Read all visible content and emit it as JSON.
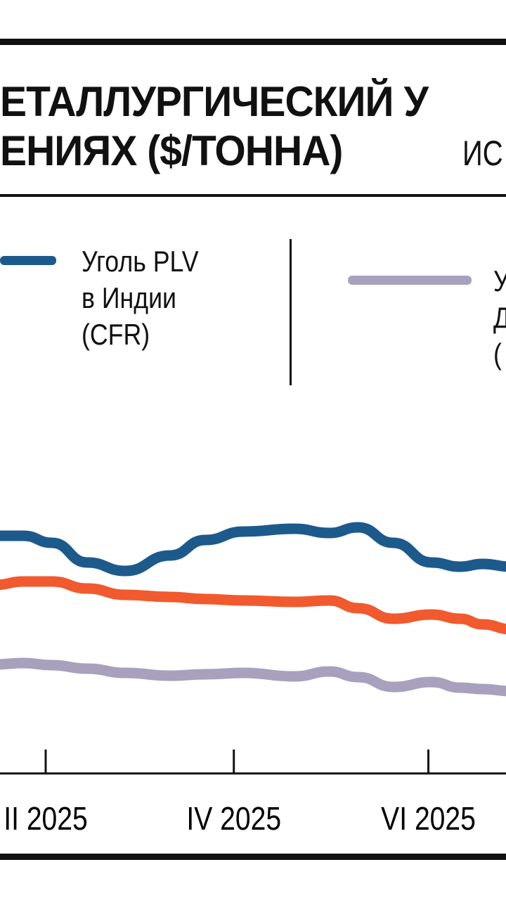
{
  "chart_data": {
    "type": "line",
    "title_lines": [
      "ЕТАЛЛУРГИЧЕСКИЙ У",
      "ЕНИЯХ ($/ТОННА)"
    ],
    "source_fragment": "ИС",
    "xlabel": "",
    "ylabel": "",
    "x_ticks": [
      "II 2025",
      "IV 2025",
      "VI 2025"
    ],
    "x": [
      "2025-01-16",
      "2025-01-25",
      "2025-02-03",
      "2025-02-14",
      "2025-02-26",
      "2025-03-12",
      "2025-03-23",
      "2025-04-04",
      "2025-04-20",
      "2025-05-01",
      "2025-05-10",
      "2025-05-21",
      "2025-06-02",
      "2025-06-11",
      "2025-06-18",
      "2025-06-27"
    ],
    "ylim": [
      0,
      125
    ],
    "grid": false,
    "legend_placement": "top",
    "series": [
      {
        "name": "Уголь PLV в Индии (CFR)",
        "legend_lines": [
          "Уголь PLV",
          "в Индии",
          "(CFR)"
        ],
        "color": "#1d5a8c",
        "values": [
          84.5,
          84.5,
          82,
          75,
          72,
          77.5,
          83,
          86,
          87,
          85.5,
          87.5,
          82,
          75,
          73.5,
          74.5,
          73.5
        ]
      },
      {
        "name": "",
        "color": "#f05a2e",
        "values": [
          67,
          68.25,
          68.25,
          65.75,
          63.5,
          62.75,
          62,
          61.5,
          61,
          61.5,
          58.75,
          55,
          56.5,
          55,
          53,
          51.25
        ]
      },
      {
        "name": "",
        "legend_lines": [
          "У",
          "Д",
          "("
        ],
        "color": "#a8a1bd",
        "values": [
          38.75,
          39.25,
          38.5,
          37.25,
          35.75,
          34.75,
          35.25,
          35.75,
          34.5,
          36.25,
          34.25,
          30.75,
          32.5,
          30.5,
          30,
          29.25
        ]
      }
    ]
  }
}
